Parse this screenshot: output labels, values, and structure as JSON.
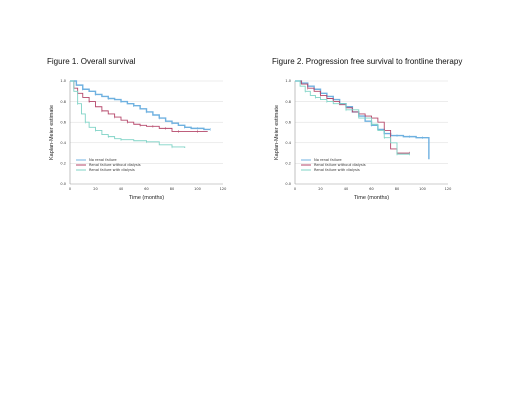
{
  "figures": [
    {
      "title": "Figure 1. Overall survival"
    },
    {
      "title": "Figure 2. Progression free survival to frontline therapy"
    }
  ],
  "chart_data": [
    {
      "type": "line",
      "title": "Figure 1. Overall survival",
      "xlabel": "Time (months)",
      "ylabel": "Kaplan-Meier estimate",
      "xlim": [
        0,
        120
      ],
      "ylim": [
        0,
        1.0
      ],
      "xticks": [
        "0",
        "20",
        "40",
        "60",
        "80",
        "100",
        "120"
      ],
      "yticks": [
        "0.0",
        "0.2",
        "0.4",
        "0.6",
        "0.8",
        "1.0"
      ],
      "grid": "horizontal",
      "legend": "bottom-left",
      "series": [
        {
          "name": "No renal failure",
          "color": "#6fb1e0",
          "x": [
            0,
            5,
            10,
            15,
            20,
            25,
            30,
            35,
            40,
            45,
            50,
            55,
            60,
            65,
            70,
            75,
            80,
            85,
            90,
            95,
            100,
            105,
            110
          ],
          "y": [
            1.0,
            0.96,
            0.92,
            0.9,
            0.87,
            0.85,
            0.83,
            0.82,
            0.8,
            0.78,
            0.76,
            0.73,
            0.7,
            0.67,
            0.64,
            0.61,
            0.59,
            0.57,
            0.55,
            0.54,
            0.54,
            0.53,
            0.53
          ]
        },
        {
          "name": "Renal failure without dialysis",
          "color": "#b5476a",
          "x": [
            0,
            3,
            6,
            10,
            15,
            20,
            25,
            30,
            35,
            40,
            45,
            50,
            55,
            60,
            65,
            70,
            75,
            80,
            85,
            90,
            100,
            108
          ],
          "y": [
            1.0,
            0.93,
            0.88,
            0.84,
            0.8,
            0.75,
            0.71,
            0.68,
            0.65,
            0.62,
            0.6,
            0.58,
            0.57,
            0.56,
            0.56,
            0.54,
            0.54,
            0.51,
            0.51,
            0.51,
            0.51,
            0.51
          ]
        },
        {
          "name": "Renal failure with dialysis",
          "color": "#7fd3c6",
          "x": [
            0,
            3,
            6,
            9,
            12,
            15,
            20,
            25,
            30,
            35,
            40,
            50,
            60,
            70,
            80,
            90
          ],
          "y": [
            1.0,
            0.9,
            0.78,
            0.68,
            0.6,
            0.55,
            0.52,
            0.48,
            0.46,
            0.44,
            0.43,
            0.42,
            0.41,
            0.38,
            0.36,
            0.35
          ]
        }
      ]
    },
    {
      "type": "line",
      "title": "Figure 2. Progression free survival to frontline therapy",
      "xlabel": "Time (months)",
      "ylabel": "Kaplan-Meier estimate",
      "xlim": [
        0,
        120
      ],
      "ylim": [
        0,
        1.0
      ],
      "xticks": [
        "0",
        "20",
        "40",
        "60",
        "80",
        "100",
        "120"
      ],
      "yticks": [
        "0.0",
        "0.2",
        "0.4",
        "0.6",
        "0.8",
        "1.0"
      ],
      "grid": "horizontal",
      "legend": "bottom-left",
      "series": [
        {
          "name": "No renal failure",
          "color": "#6fb1e0",
          "x": [
            0,
            5,
            10,
            15,
            20,
            25,
            30,
            35,
            40,
            45,
            50,
            55,
            60,
            65,
            70,
            75,
            80,
            85,
            90,
            95,
            100,
            105
          ],
          "y": [
            1.0,
            0.98,
            0.95,
            0.92,
            0.88,
            0.85,
            0.82,
            0.78,
            0.75,
            0.7,
            0.66,
            0.61,
            0.57,
            0.53,
            0.49,
            0.47,
            0.47,
            0.46,
            0.46,
            0.45,
            0.45,
            0.24
          ]
        },
        {
          "name": "Renal failure without dialysis",
          "color": "#b5476a",
          "x": [
            0,
            5,
            10,
            15,
            20,
            25,
            30,
            35,
            40,
            45,
            50,
            55,
            60,
            65,
            70,
            75,
            80,
            85,
            90
          ],
          "y": [
            1.0,
            0.97,
            0.93,
            0.9,
            0.86,
            0.83,
            0.8,
            0.77,
            0.74,
            0.7,
            0.68,
            0.66,
            0.64,
            0.6,
            0.52,
            0.34,
            0.3,
            0.3,
            0.3
          ]
        },
        {
          "name": "Renal failure with dialysis",
          "color": "#7fd3c6",
          "x": [
            0,
            4,
            8,
            12,
            16,
            20,
            25,
            30,
            40,
            50,
            60,
            65,
            70,
            75,
            80,
            85,
            90
          ],
          "y": [
            1.0,
            0.95,
            0.9,
            0.86,
            0.84,
            0.82,
            0.8,
            0.78,
            0.72,
            0.64,
            0.58,
            0.52,
            0.45,
            0.4,
            0.29,
            0.29,
            0.29
          ]
        }
      ]
    }
  ]
}
